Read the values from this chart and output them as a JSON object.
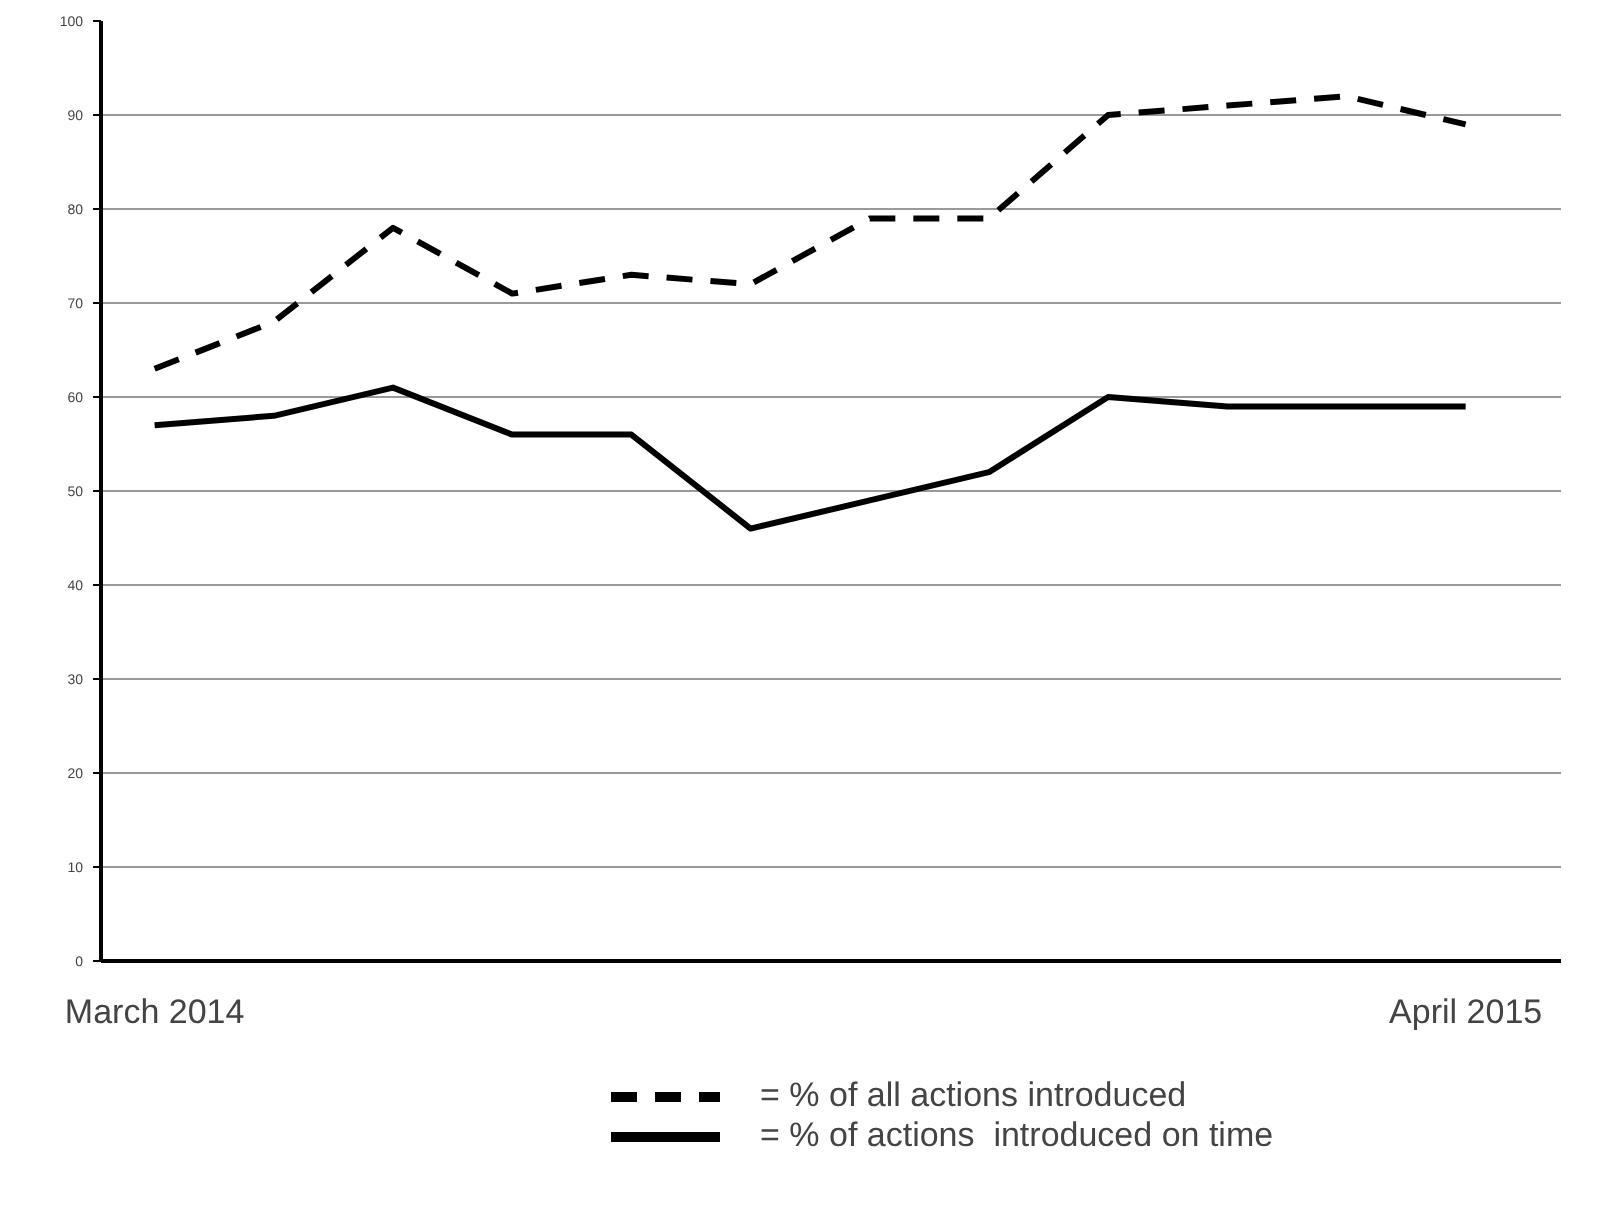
{
  "chart_data": {
    "type": "line",
    "categories": [
      "March 2014",
      null,
      null,
      null,
      null,
      null,
      null,
      null,
      null,
      null,
      null,
      "April 2015"
    ],
    "series": [
      {
        "name": "= % of all actions introduced",
        "color": "#000000",
        "line_style": "dashed",
        "values": [
          63,
          68,
          78,
          71,
          73,
          72,
          79,
          79,
          90,
          91,
          92,
          89
        ]
      },
      {
        "name": "= % of actions  introduced on time",
        "color": "#000000",
        "line_style": "solid",
        "values": [
          57,
          58,
          61,
          56,
          56,
          46,
          49,
          52,
          60,
          59,
          59,
          59
        ]
      }
    ],
    "ylim": [
      0,
      100
    ],
    "yticks": [
      0,
      10,
      20,
      30,
      40,
      50,
      60,
      70,
      80,
      90,
      100
    ],
    "grid": "y",
    "legend": "bottom",
    "marker": "none"
  }
}
